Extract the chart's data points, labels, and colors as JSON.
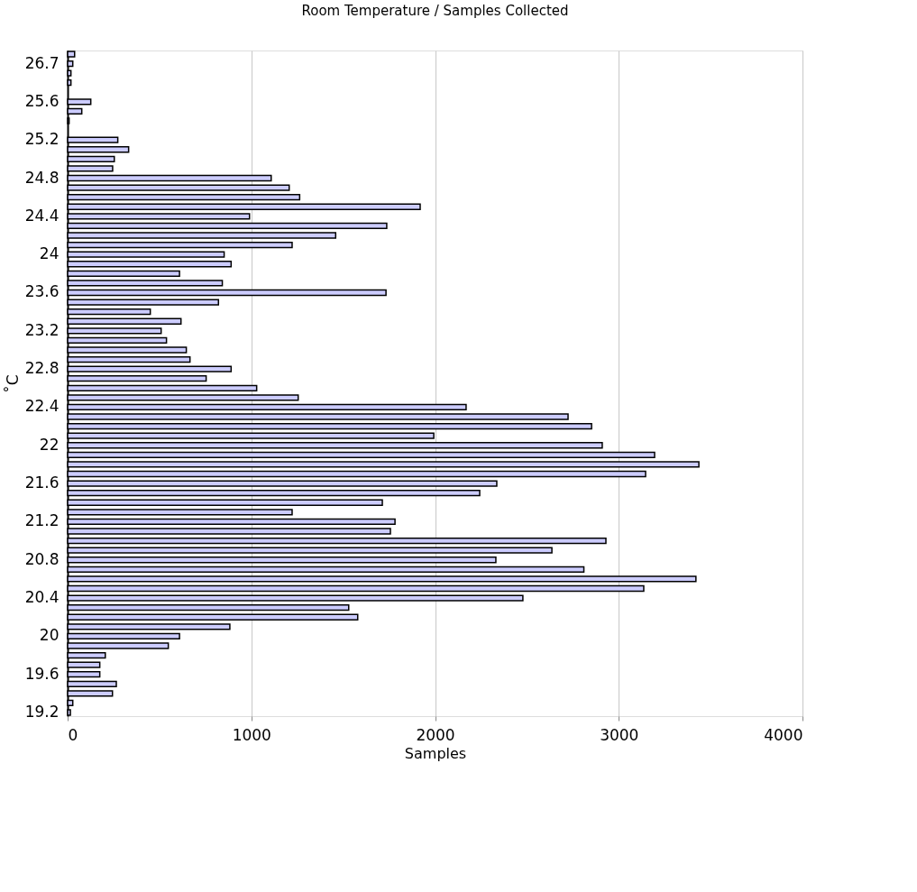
{
  "chart_data": {
    "type": "bar",
    "orientation": "horizontal",
    "title": "Room Temperature / Samples Collected",
    "xlabel": "Samples",
    "ylabel": "˚C",
    "categories": [
      null,
      "26.7",
      null,
      null,
      null,
      "25.6",
      null,
      null,
      null,
      "25.2",
      null,
      null,
      null,
      "24.8",
      null,
      null,
      null,
      "24.4",
      null,
      null,
      null,
      "24",
      null,
      null,
      null,
      "23.6",
      null,
      null,
      null,
      "23.2",
      null,
      null,
      null,
      "22.8",
      null,
      null,
      null,
      "22.4",
      null,
      null,
      null,
      "22",
      null,
      null,
      null,
      "21.6",
      null,
      null,
      null,
      "21.2",
      null,
      null,
      null,
      "20.8",
      null,
      null,
      null,
      "20.4",
      null,
      null,
      null,
      "20",
      null,
      null,
      null,
      "19.6",
      null,
      null,
      null,
      "19.2"
    ],
    "values": [
      38,
      28,
      18,
      18,
      null,
      126,
      77,
      8,
      null,
      273,
      332,
      254,
      245,
      1108,
      1206,
      1263,
      1919,
      990,
      1737,
      1459,
      1222,
      852,
      890,
      609,
      842,
      1733,
      821,
      450,
      617,
      509,
      538,
      646,
      666,
      890,
      754,
      1029,
      1255,
      2169,
      2724,
      2852,
      1993,
      2910,
      3195,
      3436,
      3146,
      2336,
      2243,
      1713,
      1222,
      1782,
      1757,
      2930,
      2636,
      2331,
      2810,
      3420,
      3136,
      2478,
      1530,
      1579,
      883,
      609,
      548,
      205,
      175,
      175,
      265,
      244,
      28,
      15
    ],
    "color": "#ccccff",
    "xlim": [
      0,
      4000
    ],
    "xticks": [
      0,
      1000,
      2000,
      3000,
      4000
    ],
    "grid": "x"
  }
}
